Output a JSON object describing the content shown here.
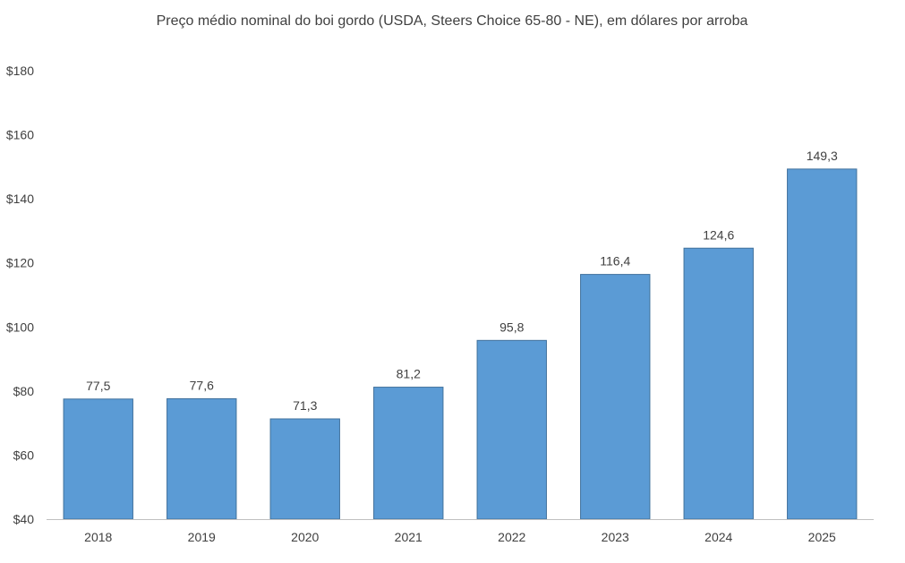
{
  "chart_data": {
    "type": "bar",
    "title": "Preço médio nominal do boi gordo (USDA, Steers Choice 65-80 - NE), em dólares por arroba",
    "xlabel": "",
    "ylabel": "",
    "categories": [
      "2018",
      "2019",
      "2020",
      "2021",
      "2022",
      "2023",
      "2024",
      "2025"
    ],
    "values": [
      77.5,
      77.6,
      71.3,
      81.2,
      95.8,
      116.4,
      124.6,
      149.3
    ],
    "data_labels": [
      "77,5",
      "77,6",
      "71,3",
      "81,2",
      "95,8",
      "116,4",
      "124,6",
      "149,3"
    ],
    "ylim": [
      40,
      180
    ],
    "yticks": [
      40,
      60,
      80,
      100,
      120,
      140,
      160,
      180
    ],
    "ytick_labels": [
      "$40",
      "$60",
      "$80",
      "$100",
      "$120",
      "$140",
      "$160",
      "$180"
    ],
    "grid": false,
    "legend": "none",
    "colors": {
      "bar_fill": "#5b9bd5",
      "bar_stroke": "#41719c",
      "axis": "#bfbfbf",
      "text": "#404040"
    }
  }
}
